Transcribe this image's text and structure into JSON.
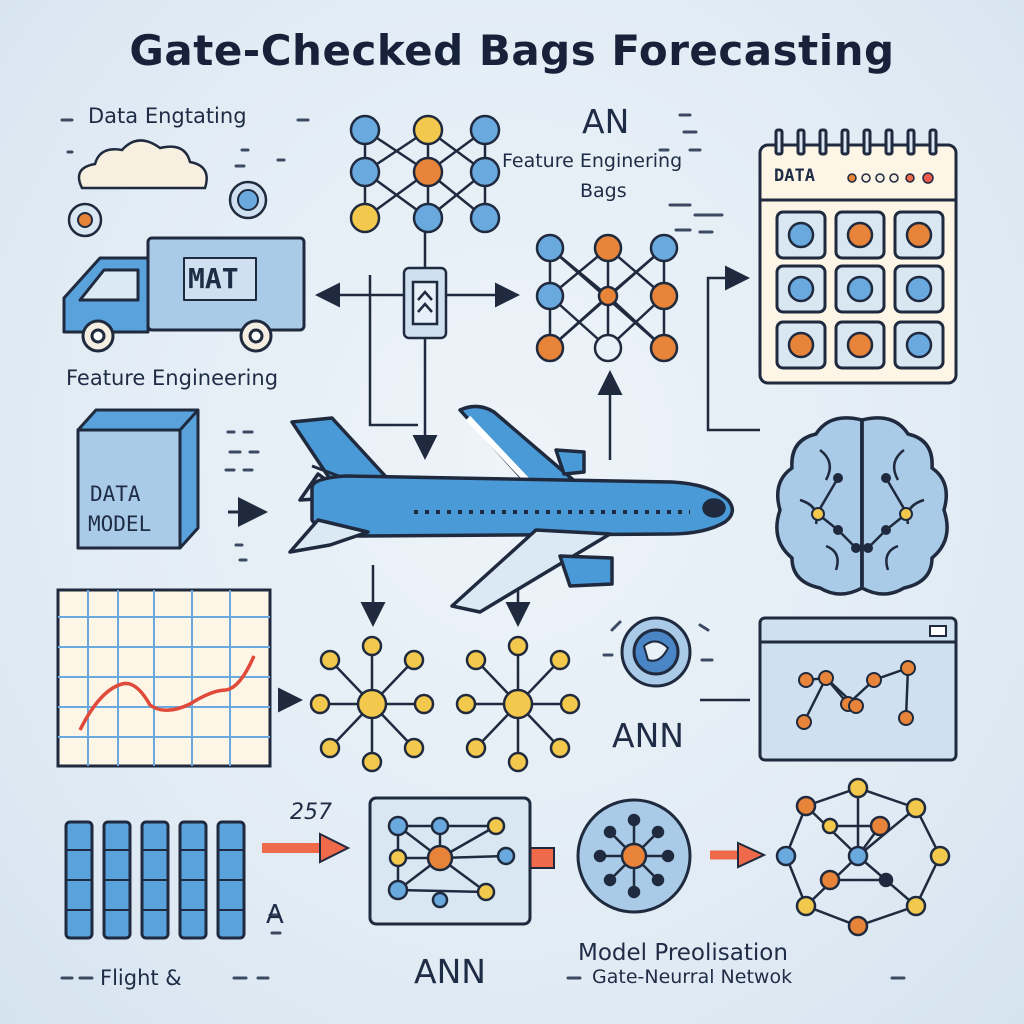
{
  "title": "Gate-Checked Bags Forecasting",
  "labels": {
    "data_engtating": "Data Engtating",
    "an": "AN",
    "feature_eng_bags_1": "Feature Enginering",
    "feature_eng_bags_2": "Bags",
    "calendar_header": "DATA",
    "truck_sign": "MAT",
    "feature_engineering": "Feature Engineering",
    "data_model_1": "DATA",
    "data_model_2": "MODEL",
    "ann_right": "ANN",
    "ann_bottom": "ANN",
    "number_257": "257",
    "a_label": "A",
    "flight": "Flight &",
    "model_pred": "Model Preolisation",
    "gate_network": "Gate-Neurral Netwok"
  },
  "colors": {
    "outline": "#1f2a3e",
    "blue": "#4a9ad8",
    "light_blue": "#a9cbe8",
    "orange": "#e8843a",
    "yellow": "#f2c94c",
    "red_arrow": "#ef6a4a",
    "cream": "#fdf6e6"
  }
}
